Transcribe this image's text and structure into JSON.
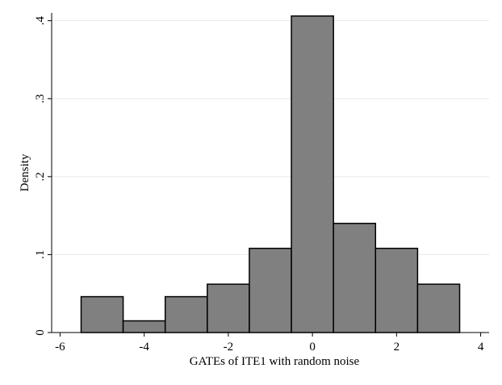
{
  "chart_data": {
    "type": "bar",
    "xlabel": "GATEs of ITE1 with random noise",
    "ylabel": "Density",
    "xlim": [
      -6.2,
      4.2
    ],
    "ylim": [
      0,
      0.41
    ],
    "x_ticks": [
      -6,
      -4,
      -2,
      0,
      2,
      4
    ],
    "x_tick_labels": [
      "-6",
      "-4",
      "-2",
      "0",
      "2",
      "4"
    ],
    "y_ticks": [
      0,
      0.1,
      0.2,
      0.3,
      0.4
    ],
    "y_tick_labels": [
      "0",
      ".1",
      ".2",
      ".3",
      ".4"
    ],
    "grid": true,
    "bar_color": "#808080",
    "bins": [
      {
        "x0": -5.5,
        "x1": -4.5,
        "density": 0.046
      },
      {
        "x0": -4.5,
        "x1": -3.5,
        "density": 0.015
      },
      {
        "x0": -3.5,
        "x1": -2.5,
        "density": 0.046
      },
      {
        "x0": -2.5,
        "x1": -1.5,
        "density": 0.062
      },
      {
        "x0": -1.5,
        "x1": -0.5,
        "density": 0.108
      },
      {
        "x0": -0.5,
        "x1": 0.5,
        "density": 0.406
      },
      {
        "x0": 0.5,
        "x1": 1.5,
        "density": 0.14
      },
      {
        "x0": 1.5,
        "x1": 2.5,
        "density": 0.108
      },
      {
        "x0": 2.5,
        "x1": 3.5,
        "density": 0.062
      }
    ]
  }
}
